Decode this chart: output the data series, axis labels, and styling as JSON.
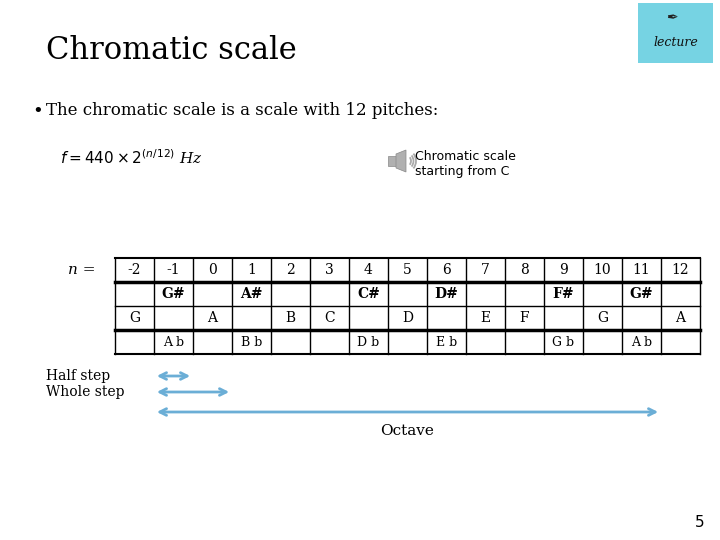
{
  "title": "Chromatic scale",
  "bullet": "The chromatic scale is a scale with 12 pitches:",
  "audio_label": "Chromatic scale\nstarting from C",
  "n_label": "n =",
  "n_values": [
    "-2",
    "-1",
    "0",
    "1",
    "2",
    "3",
    "4",
    "5",
    "6",
    "7",
    "8",
    "9",
    "10",
    "11",
    "12"
  ],
  "sharp_row": [
    "",
    "G#",
    "",
    "A#",
    "",
    "",
    "C#",
    "",
    "D#",
    "",
    "",
    "F#",
    "",
    "G#",
    ""
  ],
  "natural_row": [
    "G",
    "",
    "A",
    "",
    "B",
    "C",
    "",
    "D",
    "",
    "E",
    "F",
    "",
    "G",
    "",
    "A"
  ],
  "flat_row": [
    "",
    "A b",
    "",
    "B b",
    "",
    "",
    "D b",
    "",
    "E b",
    "",
    "",
    "G b",
    "",
    "A b",
    ""
  ],
  "bg_color": "#ffffff",
  "title_color": "#000000",
  "table_line_color": "#000000",
  "arrow_color": "#6baed6",
  "text_color": "#000000",
  "page_number": "5",
  "half_step_label": "Half step",
  "whole_step_label": "Whole step",
  "octave_label": "Octave"
}
